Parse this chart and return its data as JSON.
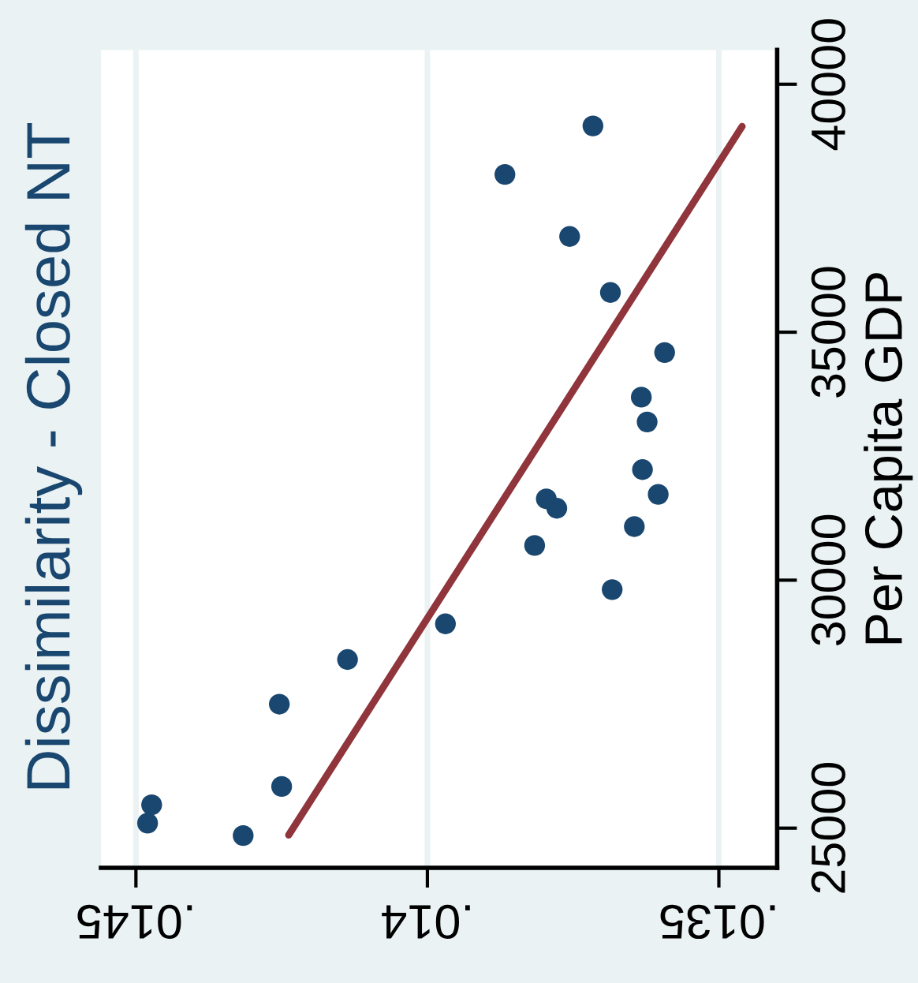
{
  "chart_data": {
    "type": "scatter",
    "title": "Dissimilarity - Closed NT",
    "ylabel": "Per Capita GDP",
    "xlim": [
      0.01456,
      0.0134
    ],
    "ylim": [
      24200,
      40690
    ],
    "xticks": [
      {
        "value": 0.0145,
        "label": ".0145"
      },
      {
        "value": 0.014,
        "label": ".014"
      },
      {
        "value": 0.0135,
        "label": ".0135"
      }
    ],
    "yticks": [
      25000,
      30000,
      35000,
      40000
    ],
    "grid": "x",
    "legend": false,
    "series": [
      {
        "color": "#1a476f",
        "marker": "circle",
        "x": [
          0.013716,
          0.013867,
          0.013756,
          0.013686,
          0.013593,
          0.013633,
          0.013623,
          0.013631,
          0.013604,
          0.013796,
          0.013778,
          0.013645,
          0.013816,
          0.013683,
          0.013969,
          0.014137,
          0.014254,
          0.01425,
          0.014473,
          0.01448,
          0.014316
        ],
        "values": [
          39160,
          38180,
          36930,
          35800,
          34590,
          33690,
          33190,
          32230,
          31730,
          31640,
          31450,
          31080,
          30700,
          29810,
          29120,
          28400,
          27500,
          25840,
          25470,
          25100,
          24850
        ]
      },
      {
        "type": "line",
        "color": "#90353b",
        "marker": "none",
        "line_style": "solid",
        "x": [
          0.014238,
          0.01346
        ],
        "values": [
          24860,
          39150
        ]
      }
    ]
  }
}
